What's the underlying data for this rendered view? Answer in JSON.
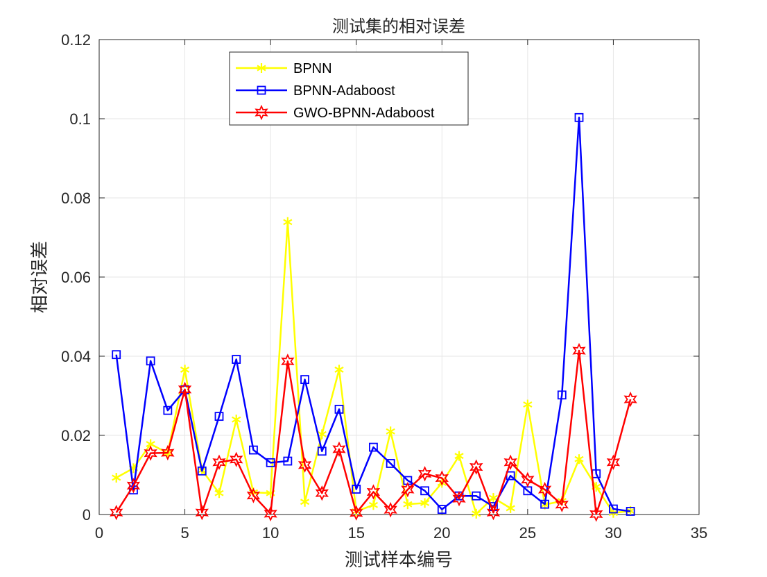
{
  "chart_data": {
    "type": "line",
    "title": "测试集的相对误差",
    "xlabel": "测试样本编号",
    "ylabel": "相对误差",
    "xlim": [
      0,
      35
    ],
    "ylim": [
      0,
      0.12
    ],
    "xticks": [
      "0",
      "5",
      "10",
      "15",
      "20",
      "25",
      "30",
      "35"
    ],
    "yticks": [
      "0",
      "0.02",
      "0.04",
      "0.06",
      "0.08",
      "0.1",
      "0.12"
    ],
    "grid": true,
    "legend_position": "top-left",
    "x": [
      1,
      2,
      3,
      4,
      5,
      6,
      7,
      8,
      9,
      10,
      11,
      12,
      13,
      14,
      15,
      16,
      17,
      18,
      19,
      20,
      21,
      22,
      23,
      24,
      25,
      26,
      27,
      28,
      29,
      30,
      31
    ],
    "series": [
      {
        "name": "BPNN",
        "color": "#ffff00",
        "marker": "asterisk",
        "values": [
          0.0093,
          0.0117,
          0.0178,
          0.0155,
          0.0366,
          0.0112,
          0.0054,
          0.024,
          0.0056,
          0.0054,
          0.0739,
          0.0032,
          0.0203,
          0.0366,
          0.0008,
          0.0024,
          0.021,
          0.0026,
          0.0029,
          0.008,
          0.0148,
          0.0002,
          0.0042,
          0.0016,
          0.0278,
          0.0025,
          0.0034,
          0.014,
          0.007,
          0.0004,
          0.0009
        ]
      },
      {
        "name": "BPNN-Adaboost",
        "color": "#0000ff",
        "marker": "square",
        "values": [
          0.0404,
          0.0062,
          0.0388,
          0.0263,
          0.0315,
          0.011,
          0.0248,
          0.0392,
          0.0163,
          0.0131,
          0.0135,
          0.0341,
          0.016,
          0.0266,
          0.0064,
          0.017,
          0.0129,
          0.0086,
          0.006,
          0.0013,
          0.0047,
          0.0047,
          0.002,
          0.0098,
          0.006,
          0.0026,
          0.0302,
          0.1003,
          0.0103,
          0.0014,
          0.0008
        ]
      },
      {
        "name": "GWO-BPNN-Adaboost",
        "color": "#ff0000",
        "marker": "hexagram",
        "values": [
          0.0005,
          0.0073,
          0.0155,
          0.0156,
          0.0316,
          0.0005,
          0.0132,
          0.0139,
          0.0048,
          0.0002,
          0.0387,
          0.0125,
          0.0054,
          0.0165,
          0.0004,
          0.0057,
          0.0012,
          0.0063,
          0.0103,
          0.0092,
          0.004,
          0.012,
          0.0005,
          0.0132,
          0.0088,
          0.0063,
          0.0025,
          0.0414,
          0.0001,
          0.0132,
          0.0291
        ]
      }
    ]
  }
}
